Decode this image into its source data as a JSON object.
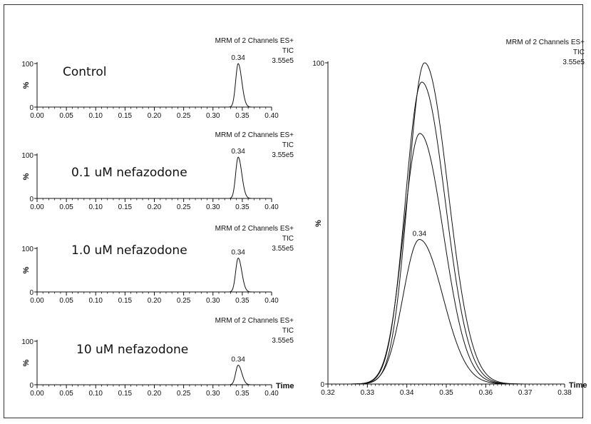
{
  "chart_data": [
    {
      "type": "line",
      "condition_label": "Control",
      "header": [
        "MRM of 2 Channels ES+",
        "TIC",
        "3.55e5"
      ],
      "peak_label": "0.34",
      "ylabel": "%",
      "y_ticks": [
        "0",
        "100"
      ],
      "ylim": [
        0,
        100
      ],
      "xlim": [
        0.0,
        0.4
      ],
      "x_ticks": [
        "0.00",
        "0.05",
        "0.10",
        "0.15",
        "0.20",
        "0.25",
        "0.30",
        "0.35",
        "0.40"
      ],
      "x_axis_label": "",
      "series": [
        {
          "peak_x": 0.343,
          "peak_y": 100,
          "width": 0.0045
        }
      ]
    },
    {
      "type": "line",
      "condition_label": "0.1 uM nefazodone",
      "header": [
        "MRM of 2 Channels ES+",
        "TIC",
        "3.55e5"
      ],
      "peak_label": "0.34",
      "ylabel": "%",
      "y_ticks": [
        "0",
        "100"
      ],
      "ylim": [
        0,
        100
      ],
      "xlim": [
        0.0,
        0.4
      ],
      "x_ticks": [
        "0.00",
        "0.05",
        "0.10",
        "0.15",
        "0.20",
        "0.25",
        "0.30",
        "0.35",
        "0.40"
      ],
      "x_axis_label": "",
      "series": [
        {
          "peak_x": 0.343,
          "peak_y": 95,
          "width": 0.0045
        }
      ]
    },
    {
      "type": "line",
      "condition_label": "1.0 uM nefazodone",
      "header": [
        "MRM of 2 Channels ES+",
        "TIC",
        "3.55e5"
      ],
      "peak_label": "0.34",
      "ylabel": "%",
      "y_ticks": [
        "0",
        "100"
      ],
      "ylim": [
        0,
        100
      ],
      "xlim": [
        0.0,
        0.4
      ],
      "x_ticks": [
        "0.00",
        "0.05",
        "0.10",
        "0.15",
        "0.20",
        "0.25",
        "0.30",
        "0.35",
        "0.40"
      ],
      "x_axis_label": "",
      "series": [
        {
          "peak_x": 0.343,
          "peak_y": 78,
          "width": 0.0045
        }
      ]
    },
    {
      "type": "line",
      "condition_label": "10 uM nefazodone",
      "header": [
        "MRM of 2 Channels ES+",
        "TIC",
        "3.55e5"
      ],
      "peak_label": "0.34",
      "ylabel": "%",
      "y_ticks": [
        "0",
        "100"
      ],
      "ylim": [
        0,
        100
      ],
      "xlim": [
        0.0,
        0.4
      ],
      "x_ticks": [
        "0.00",
        "0.05",
        "0.10",
        "0.15",
        "0.20",
        "0.25",
        "0.30",
        "0.35",
        "0.40"
      ],
      "x_axis_label": "Time",
      "series": [
        {
          "peak_x": 0.343,
          "peak_y": 45,
          "width": 0.0045
        }
      ]
    },
    {
      "type": "line",
      "condition_label": "",
      "header": [
        "MRM of 2 Channels ES+",
        "TIC",
        "3.55e5"
      ],
      "peak_label": "0.34",
      "ylabel": "%",
      "y_ticks": [
        "0",
        "100"
      ],
      "ylim": [
        0,
        100
      ],
      "xlim": [
        0.32,
        0.38
      ],
      "x_ticks": [
        "0.32",
        "0.33",
        "0.34",
        "0.35",
        "0.36",
        "0.37",
        "0.38"
      ],
      "x_axis_label": "Time",
      "series": [
        {
          "peak_x": 0.3445,
          "peak_y": 100,
          "width": 0.0044
        },
        {
          "peak_x": 0.3438,
          "peak_y": 94,
          "width": 0.0044
        },
        {
          "peak_x": 0.3433,
          "peak_y": 78,
          "width": 0.0044
        },
        {
          "peak_x": 0.3432,
          "peak_y": 45,
          "width": 0.0044
        }
      ]
    }
  ]
}
